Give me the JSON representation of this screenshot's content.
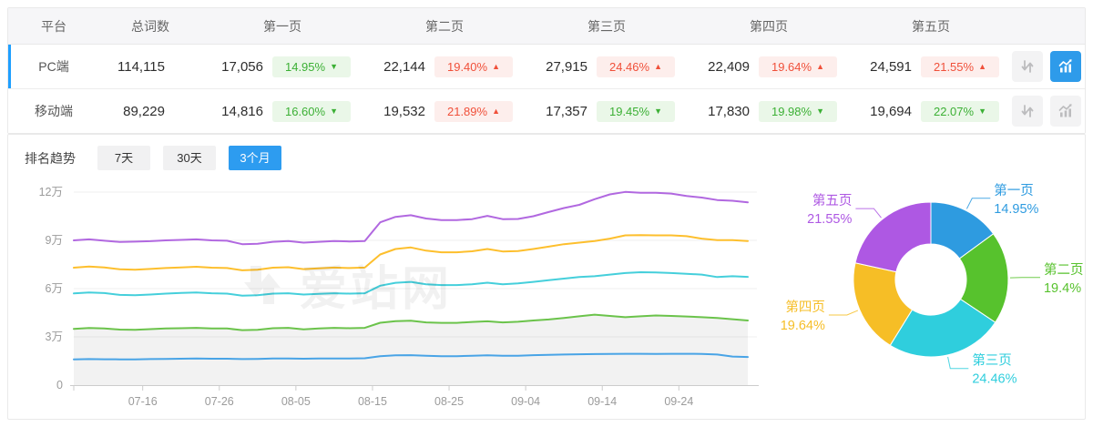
{
  "table": {
    "headers": {
      "platform": "平台",
      "total": "总词数",
      "pages": [
        "第一页",
        "第二页",
        "第三页",
        "第四页",
        "第五页"
      ]
    },
    "rows": [
      {
        "platform": "PC端",
        "total": "114,115",
        "active": true,
        "chart_active": true,
        "pages": [
          {
            "count": "17,056",
            "pct": "14.95%",
            "trend": "down"
          },
          {
            "count": "22,144",
            "pct": "19.40%",
            "trend": "up"
          },
          {
            "count": "27,915",
            "pct": "24.46%",
            "trend": "up"
          },
          {
            "count": "22,409",
            "pct": "19.64%",
            "trend": "up"
          },
          {
            "count": "24,591",
            "pct": "21.55%",
            "trend": "up"
          }
        ]
      },
      {
        "platform": "移动端",
        "total": "89,229",
        "active": false,
        "chart_active": false,
        "pages": [
          {
            "count": "14,816",
            "pct": "16.60%",
            "trend": "down"
          },
          {
            "count": "19,532",
            "pct": "21.89%",
            "trend": "up"
          },
          {
            "count": "17,357",
            "pct": "19.45%",
            "trend": "down"
          },
          {
            "count": "17,830",
            "pct": "19.98%",
            "trend": "down"
          },
          {
            "count": "19,694",
            "pct": "22.07%",
            "trend": "down"
          }
        ]
      }
    ]
  },
  "trend": {
    "label": "排名趋势",
    "tabs": [
      {
        "label": "7天",
        "active": false
      },
      {
        "label": "30天",
        "active": false
      },
      {
        "label": "3个月",
        "active": true
      }
    ]
  },
  "watermark": "爱站网",
  "icons": {
    "sort": "sort-arrows-icon",
    "chart": "trend-chart-icon",
    "trend_up": "▲",
    "trend_down": "▼"
  },
  "colors": {
    "accent_blue": "#1e9fff",
    "tab_active": "#2d9cf0",
    "badge_up_text": "#f0503a",
    "badge_up_bg": "#fdeeec",
    "badge_down_text": "#3cb035",
    "badge_down_bg": "#eaf7e8"
  },
  "chart_data": [
    {
      "type": "line",
      "title": "排名趋势（3个月，PC端，累计词数）",
      "stacked_cumulative": true,
      "unit": "万",
      "ylim": [
        0,
        12
      ],
      "yticks": [
        {
          "v": 0,
          "label": "0"
        },
        {
          "v": 3,
          "label": "3万"
        },
        {
          "v": 6,
          "label": "6万"
        },
        {
          "v": 9,
          "label": "9万"
        },
        {
          "v": 12,
          "label": "12万"
        }
      ],
      "x_day_span": 88,
      "x_ticks": [
        {
          "day": 9,
          "label": "07-16"
        },
        {
          "day": 19,
          "label": "07-26"
        },
        {
          "day": 29,
          "label": "08-05"
        },
        {
          "day": 39,
          "label": "08-15"
        },
        {
          "day": 49,
          "label": "08-25"
        },
        {
          "day": 59,
          "label": "09-04"
        },
        {
          "day": 69,
          "label": "09-14"
        },
        {
          "day": 79,
          "label": "09-24"
        }
      ],
      "day_step": 2,
      "series": [
        {
          "name": "第一页",
          "color": "#49a4e6",
          "area": false,
          "values": [
            1.6,
            1.62,
            1.61,
            1.6,
            1.6,
            1.62,
            1.63,
            1.64,
            1.65,
            1.64,
            1.64,
            1.62,
            1.63,
            1.65,
            1.66,
            1.64,
            1.65,
            1.66,
            1.66,
            1.67,
            1.8,
            1.85,
            1.86,
            1.82,
            1.8,
            1.8,
            1.82,
            1.85,
            1.82,
            1.83,
            1.86,
            1.88,
            1.9,
            1.92,
            1.93,
            1.94,
            1.95,
            1.95,
            1.94,
            1.95,
            1.95,
            1.94,
            1.9,
            1.78,
            1.75
          ]
        },
        {
          "name": "第二页",
          "color": "#6bc34b",
          "area": true,
          "values": [
            3.5,
            3.55,
            3.52,
            3.45,
            3.44,
            3.48,
            3.52,
            3.54,
            3.56,
            3.52,
            3.52,
            3.42,
            3.44,
            3.54,
            3.56,
            3.47,
            3.52,
            3.56,
            3.54,
            3.56,
            3.88,
            3.98,
            4.0,
            3.9,
            3.87,
            3.87,
            3.93,
            3.97,
            3.9,
            3.94,
            4.02,
            4.08,
            4.18,
            4.28,
            4.38,
            4.3,
            4.22,
            4.28,
            4.33,
            4.3,
            4.27,
            4.22,
            4.17,
            4.1,
            4.02
          ]
        },
        {
          "name": "第三页",
          "color": "#45cfdb",
          "area": false,
          "values": [
            5.7,
            5.76,
            5.72,
            5.61,
            5.59,
            5.63,
            5.69,
            5.73,
            5.76,
            5.71,
            5.69,
            5.56,
            5.59,
            5.69,
            5.71,
            5.63,
            5.67,
            5.71,
            5.69,
            5.71,
            6.18,
            6.36,
            6.42,
            6.27,
            6.22,
            6.22,
            6.27,
            6.37,
            6.27,
            6.32,
            6.42,
            6.52,
            6.62,
            6.72,
            6.77,
            6.87,
            6.97,
            7.02,
            7.0,
            6.97,
            6.92,
            6.87,
            6.72,
            6.77,
            6.73
          ]
        },
        {
          "name": "第四页",
          "color": "#fdbf2d",
          "area": false,
          "values": [
            7.3,
            7.37,
            7.32,
            7.2,
            7.18,
            7.22,
            7.28,
            7.32,
            7.36,
            7.3,
            7.28,
            7.14,
            7.17,
            7.3,
            7.33,
            7.21,
            7.26,
            7.31,
            7.28,
            7.31,
            8.12,
            8.46,
            8.56,
            8.36,
            8.26,
            8.26,
            8.32,
            8.46,
            8.31,
            8.33,
            8.46,
            8.61,
            8.76,
            8.86,
            8.96,
            9.11,
            9.31,
            9.33,
            9.31,
            9.31,
            9.26,
            9.11,
            9.01,
            9.01,
            8.96
          ]
        },
        {
          "name": "第五页",
          "color": "#b168e0",
          "area": false,
          "values": [
            9.0,
            9.06,
            8.98,
            8.9,
            8.92,
            8.95,
            9.0,
            9.03,
            9.06,
            9.0,
            8.98,
            8.76,
            8.79,
            8.91,
            8.96,
            8.86,
            8.91,
            8.96,
            8.93,
            8.96,
            10.12,
            10.46,
            10.56,
            10.36,
            10.26,
            10.26,
            10.32,
            10.52,
            10.32,
            10.33,
            10.5,
            10.76,
            11.01,
            11.21,
            11.56,
            11.86,
            12.01,
            11.96,
            11.96,
            11.91,
            11.76,
            11.66,
            11.51,
            11.46,
            11.36
          ]
        }
      ]
    },
    {
      "type": "pie",
      "donut": true,
      "start": "top",
      "direction": "clockwise",
      "title": "PC端各页占比",
      "slices": [
        {
          "label": "第一页",
          "pct": 14.95,
          "pct_label": "14.95%",
          "color": "#2e9be0"
        },
        {
          "label": "第二页",
          "pct": 19.4,
          "pct_label": "19.4%",
          "color": "#57c22d"
        },
        {
          "label": "第三页",
          "pct": 24.46,
          "pct_label": "24.46%",
          "color": "#2fcedd"
        },
        {
          "label": "第四页",
          "pct": 19.64,
          "pct_label": "19.64%",
          "color": "#f6be26"
        },
        {
          "label": "第五页",
          "pct": 21.55,
          "pct_label": "21.55%",
          "color": "#ae58e3"
        }
      ]
    }
  ]
}
